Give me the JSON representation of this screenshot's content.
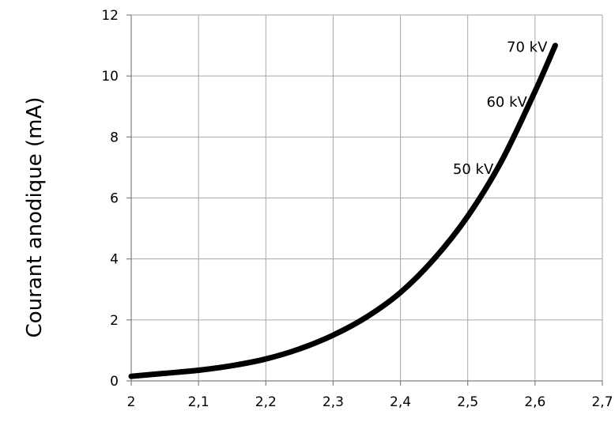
{
  "chart_data": {
    "type": "line",
    "title": "",
    "xlabel": "",
    "ylabel": "Courant anodique (mA)",
    "xlim": [
      2,
      2.7
    ],
    "ylim": [
      0,
      12
    ],
    "grid": true,
    "x_ticks": [
      "2",
      "2,1",
      "2,2",
      "2,3",
      "2,4",
      "2,5",
      "2,6",
      "2,7"
    ],
    "y_ticks": [
      "0",
      "2",
      "4",
      "6",
      "8",
      "10",
      "12"
    ],
    "series": [
      {
        "x": [
          2.0,
          2.05,
          2.1,
          2.15,
          2.2,
          2.25,
          2.3,
          2.35,
          2.4,
          2.45,
          2.5,
          2.55,
          2.6,
          2.63
        ],
        "y": [
          0.15,
          0.25,
          0.35,
          0.5,
          0.72,
          1.05,
          1.5,
          2.1,
          2.9,
          4.0,
          5.4,
          7.2,
          9.5,
          11.0
        ]
      }
    ],
    "annotations": [
      {
        "text": "70 kV",
        "x": 2.63,
        "y": 11.0
      },
      {
        "text": "60 kV",
        "x": 2.6,
        "y": 9.2
      },
      {
        "text": "50 kV",
        "x": 2.55,
        "y": 7.0
      }
    ]
  }
}
